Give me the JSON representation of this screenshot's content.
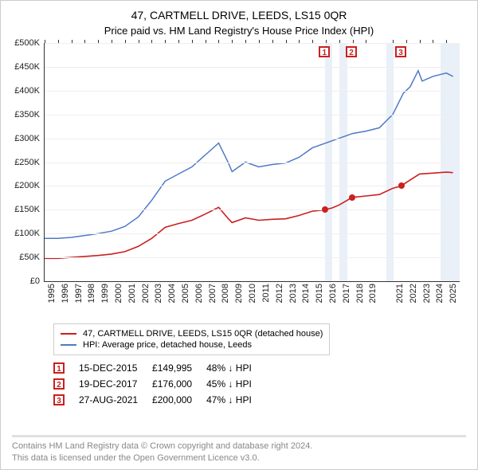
{
  "title": "47, CARTMELL DRIVE, LEEDS, LS15 0QR",
  "subtitle": "Price paid vs. HM Land Registry's House Price Index (HPI)",
  "chart": {
    "type": "line",
    "background_color": "#ffffff",
    "grid_color": "#eeeeee",
    "axis_color": "#333333",
    "y": {
      "min": 0,
      "max": 500000,
      "step": 50000,
      "labels": [
        "£0",
        "£50K",
        "£100K",
        "£150K",
        "£200K",
        "£250K",
        "£300K",
        "£350K",
        "£400K",
        "£450K",
        "£500K"
      ]
    },
    "x": {
      "min": 1995,
      "max": 2026,
      "tick_step": 1,
      "labels": [
        "1995",
        "1996",
        "1997",
        "1998",
        "1999",
        "2000",
        "2001",
        "2002",
        "2003",
        "2004",
        "2005",
        "2006",
        "2007",
        "2008",
        "2009",
        "2010",
        "2011",
        "2012",
        "2013",
        "2014",
        "2015",
        "2016",
        "2017",
        "2018",
        "2019",
        "2021",
        "2022",
        "2023",
        "2024",
        "2025"
      ],
      "label_years": [
        1995,
        1996,
        1997,
        1998,
        1999,
        2000,
        2001,
        2002,
        2003,
        2004,
        2005,
        2006,
        2007,
        2008,
        2009,
        2010,
        2011,
        2012,
        2013,
        2014,
        2015,
        2016,
        2017,
        2018,
        2019,
        2021,
        2022,
        2023,
        2024,
        2025
      ]
    },
    "shaded_bands": [
      {
        "from": 2015.96,
        "to": 2016.5,
        "color": "#d8e4f3"
      },
      {
        "from": 2017.0,
        "to": 2017.6,
        "color": "#d8e4f3"
      },
      {
        "from": 2020.5,
        "to": 2021.05,
        "color": "#d8e4f3"
      },
      {
        "from": 2024.6,
        "to": 2026.0,
        "color": "#d8e4f3"
      }
    ],
    "series": [
      {
        "id": "hpi",
        "label": "HPI: Average price, detached house, Leeds",
        "color": "#4e7ac7",
        "line_width": 1.5,
        "points": [
          [
            1995,
            90000
          ],
          [
            1996,
            90000
          ],
          [
            1997,
            92000
          ],
          [
            1998,
            96000
          ],
          [
            1999,
            100000
          ],
          [
            2000,
            105000
          ],
          [
            2001,
            115000
          ],
          [
            2002,
            135000
          ],
          [
            2003,
            170000
          ],
          [
            2004,
            210000
          ],
          [
            2005,
            225000
          ],
          [
            2006,
            240000
          ],
          [
            2007,
            265000
          ],
          [
            2008,
            290000
          ],
          [
            2008.7,
            250000
          ],
          [
            2009,
            230000
          ],
          [
            2010,
            250000
          ],
          [
            2011,
            240000
          ],
          [
            2012,
            245000
          ],
          [
            2013,
            248000
          ],
          [
            2014,
            260000
          ],
          [
            2015,
            280000
          ],
          [
            2016,
            290000
          ],
          [
            2017,
            300000
          ],
          [
            2018,
            310000
          ],
          [
            2019,
            315000
          ],
          [
            2020,
            322000
          ],
          [
            2021,
            350000
          ],
          [
            2021.8,
            395000
          ],
          [
            2022.3,
            408000
          ],
          [
            2022.9,
            442000
          ],
          [
            2023.2,
            420000
          ],
          [
            2024,
            430000
          ],
          [
            2025,
            437000
          ],
          [
            2025.5,
            430000
          ]
        ]
      },
      {
        "id": "price_paid",
        "label": "47, CARTMELL DRIVE, LEEDS, LS15 0QR (detached house)",
        "color": "#cc1f1f",
        "line_width": 1.6,
        "points": [
          [
            1995,
            48000
          ],
          [
            1996,
            48000
          ],
          [
            1997,
            50000
          ],
          [
            1998,
            52000
          ],
          [
            1999,
            54000
          ],
          [
            2000,
            57000
          ],
          [
            2001,
            62000
          ],
          [
            2002,
            73000
          ],
          [
            2003,
            90000
          ],
          [
            2004,
            113000
          ],
          [
            2005,
            121000
          ],
          [
            2006,
            128000
          ],
          [
            2007,
            141000
          ],
          [
            2008,
            155000
          ],
          [
            2008.7,
            132000
          ],
          [
            2009,
            123000
          ],
          [
            2010,
            133000
          ],
          [
            2011,
            128000
          ],
          [
            2012,
            130000
          ],
          [
            2013,
            131000
          ],
          [
            2014,
            138000
          ],
          [
            2015,
            147000
          ],
          [
            2015.96,
            149995
          ],
          [
            2016.5,
            154000
          ],
          [
            2017,
            160000
          ],
          [
            2017.97,
            176000
          ],
          [
            2019,
            179000
          ],
          [
            2020,
            182000
          ],
          [
            2021,
            195000
          ],
          [
            2021.66,
            200000
          ],
          [
            2022,
            207000
          ],
          [
            2023,
            225000
          ],
          [
            2024,
            227000
          ],
          [
            2025,
            229000
          ],
          [
            2025.5,
            228000
          ]
        ]
      }
    ],
    "sale_markers": {
      "box_border_color": "#cc1f1f",
      "dot_color": "#cc1f1f",
      "items": [
        {
          "n": "1",
          "x": 2015.96,
          "y": 149995
        },
        {
          "n": "2",
          "x": 2017.97,
          "y": 176000
        },
        {
          "n": "3",
          "x": 2021.66,
          "y": 200000
        }
      ]
    }
  },
  "legend": {
    "items": [
      {
        "color": "#cc1f1f",
        "label": "47, CARTMELL DRIVE, LEEDS, LS15 0QR (detached house)"
      },
      {
        "color": "#4e7ac7",
        "label": "HPI: Average price, detached house, Leeds"
      }
    ]
  },
  "sales_table": {
    "rows": [
      {
        "n": "1",
        "date": "15-DEC-2015",
        "price": "£149,995",
        "delta": "48% ↓ HPI"
      },
      {
        "n": "2",
        "date": "19-DEC-2017",
        "price": "£176,000",
        "delta": "45% ↓ HPI"
      },
      {
        "n": "3",
        "date": "27-AUG-2021",
        "price": "£200,000",
        "delta": "47% ↓ HPI"
      }
    ],
    "marker_color": "#cc1f1f"
  },
  "footer": {
    "line1": "Contains HM Land Registry data © Crown copyright and database right 2024.",
    "line2": "This data is licensed under the Open Government Licence v3.0."
  }
}
